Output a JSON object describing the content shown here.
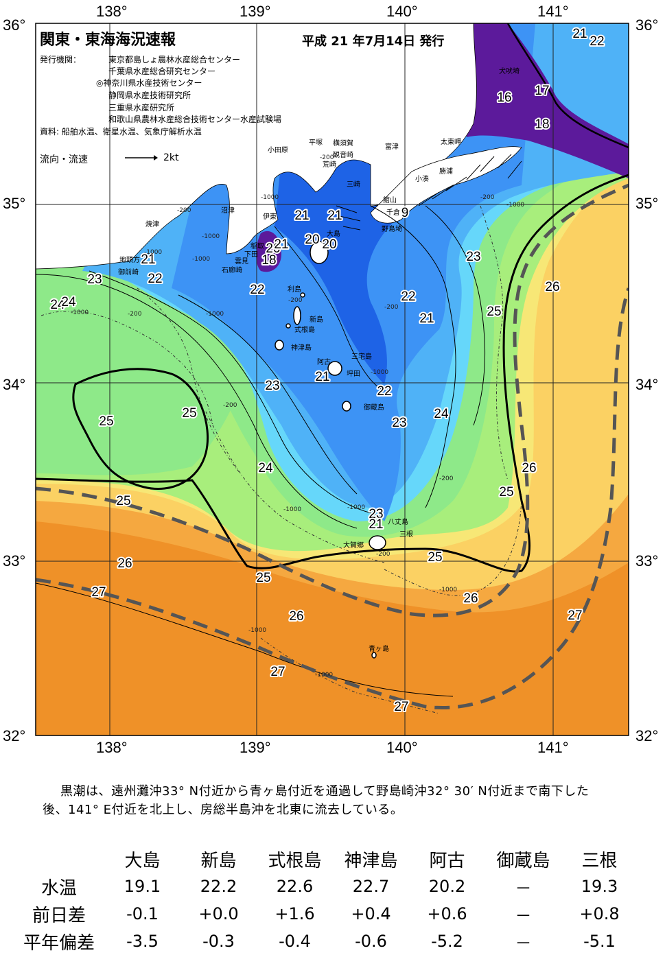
{
  "report": {
    "title": "関東・東海海況速報",
    "date": "平成 21 年7月14日 発行",
    "agency_label": "発行機関：",
    "agencies": [
      "東京都島しょ農林水産総合センター",
      "千葉県水産総合研究センター",
      "◎神奈川県水産技術センター",
      "静岡県水産技術研究所",
      "三重県水産研究所",
      "和歌山県農林水産総合技術センター水産試験場"
    ],
    "source": "資料: 船舶水温、衛星水温、気象庁解析水温",
    "legend_label": "流向・流速",
    "legend_speed": "2kt"
  },
  "axes": {
    "lon_labels": [
      "138°",
      "139°",
      "140°",
      "141°"
    ],
    "lat_labels": [
      "36°",
      "35°",
      "34°",
      "33°",
      "32°"
    ]
  },
  "colors": {
    "sea_19": "#1e63e6",
    "sea_20": "#2f7ff0",
    "sea_21": "#3d93f5",
    "sea_22": "#4fb2f7",
    "sea_23": "#66d7fa",
    "sea_24": "#8ee989",
    "sea_25": "#a8ee7c",
    "sea_26": "#f7e776",
    "sea_26b": "#fbd163",
    "sea_27": "#f5a840",
    "sea_28": "#ef9128",
    "cold": "#5c1a9b",
    "land": "#ffffff",
    "kuroshio_axis": "#555555"
  },
  "isotherm_labels": [
    {
      "text": "21"
    },
    {
      "text": "22"
    },
    {
      "text": "16"
    },
    {
      "text": "17"
    },
    {
      "text": "18"
    },
    {
      "text": "21"
    },
    {
      "text": "21"
    },
    {
      "text": "9"
    },
    {
      "text": "20"
    },
    {
      "text": "21"
    },
    {
      "text": "20"
    },
    {
      "text": "18"
    },
    {
      "text": "20"
    },
    {
      "text": "21"
    },
    {
      "text": "24"
    },
    {
      "text": "23"
    },
    {
      "text": "22"
    },
    {
      "text": "23"
    },
    {
      "text": "22"
    },
    {
      "text": "26"
    },
    {
      "text": "22"
    },
    {
      "text": "21"
    },
    {
      "text": "25"
    },
    {
      "text": "24"
    },
    {
      "text": "21"
    },
    {
      "text": "23"
    },
    {
      "text": "22"
    },
    {
      "text": "25"
    },
    {
      "text": "25"
    },
    {
      "text": "24"
    },
    {
      "text": "23"
    },
    {
      "text": "24"
    },
    {
      "text": "26"
    },
    {
      "text": "25"
    },
    {
      "text": "25"
    },
    {
      "text": "23"
    },
    {
      "text": "21"
    },
    {
      "text": "26"
    },
    {
      "text": "25"
    },
    {
      "text": "25"
    },
    {
      "text": "27"
    },
    {
      "text": "26"
    },
    {
      "text": "26"
    },
    {
      "text": "27"
    },
    {
      "text": "27"
    },
    {
      "text": "27"
    }
  ],
  "place_names": [
    "犬吠埼",
    "太東岬",
    "勝浦",
    "小湊",
    "富津",
    "館山",
    "千倉",
    "野島埼",
    "横須賀",
    "平塚",
    "観音崎",
    "荒崎",
    "三崎",
    "小田原",
    "沼津",
    "伊東",
    "稲取",
    "下田",
    "雲見",
    "石廊崎",
    "焼津",
    "地頭方",
    "御前崎",
    "大島",
    "利島",
    "新島",
    "式根島",
    "神津島",
    "三宅島",
    "阿古",
    "坪田",
    "御蔵島",
    "八丈島",
    "三根",
    "大賀郷",
    "青ヶ島"
  ],
  "depth_labels": [
    "-200",
    "-1000"
  ],
  "summary": "黒潮は、遠州灘沖33° N付近から青ヶ島付近を通過して野島崎沖32° 30′ N付近まで南下した後、141° E付近を北上し、房総半島沖を北東に流去している。",
  "table": {
    "columns": [
      "大島",
      "新島",
      "式根島",
      "神津島",
      "阿古",
      "御蔵島",
      "三根"
    ],
    "rows": [
      {
        "label": "水温",
        "values": [
          "19.1",
          "22.2",
          "22.6",
          "22.7",
          "20.2",
          "－",
          "19.3"
        ]
      },
      {
        "label": "前日差",
        "values": [
          "-0.1",
          "+0.0",
          "+1.6",
          "+0.4",
          "+0.6",
          "－",
          "+0.8"
        ]
      },
      {
        "label": "平年偏差",
        "values": [
          "-3.5",
          "-0.3",
          "-0.4",
          "-0.6",
          "-5.2",
          "－",
          "-5.1"
        ]
      }
    ]
  }
}
